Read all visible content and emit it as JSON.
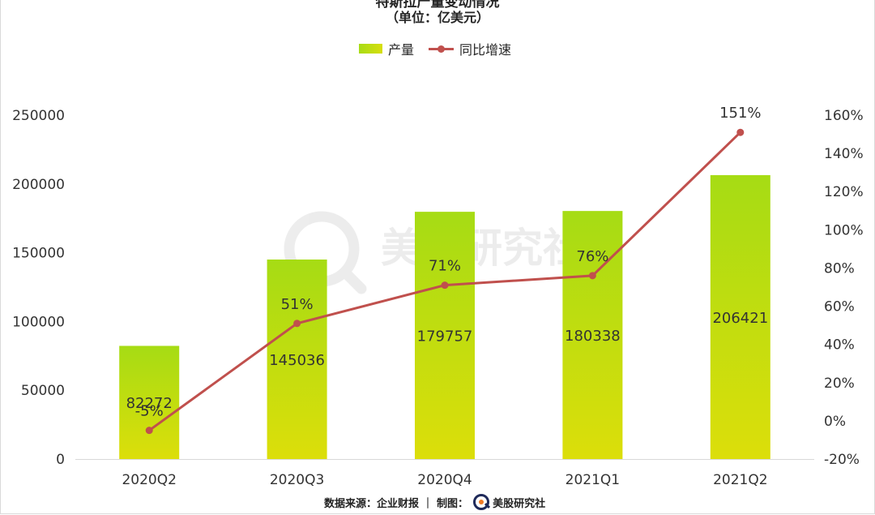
{
  "chart_data": {
    "type": "bar",
    "title": "特斯拉产量变动情况",
    "subtitle": "（单位：亿美元）",
    "categories": [
      "2020Q2",
      "2020Q3",
      "2020Q4",
      "2021Q1",
      "2021Q2"
    ],
    "series": [
      {
        "name": "产量",
        "type": "bar",
        "axis": "left",
        "values": [
          82272,
          145036,
          179757,
          180338,
          206421
        ],
        "labels": [
          "82272",
          "145036",
          "179757",
          "180338",
          "206421"
        ],
        "color_start": "#a6dc14",
        "color_end": "#dcde0a"
      },
      {
        "name": "同比增速",
        "type": "line",
        "axis": "right",
        "values": [
          -5,
          51,
          71,
          76,
          151
        ],
        "labels": [
          "-5%",
          "51%",
          "71%",
          "76%",
          "151%"
        ],
        "color": "#c0504d"
      }
    ],
    "y_left": {
      "range": [
        0,
        250000
      ],
      "ticks": [
        "0",
        "50000",
        "100000",
        "150000",
        "200000",
        "250000"
      ]
    },
    "y_right": {
      "range": [
        -20,
        160
      ],
      "ticks": [
        "-20%",
        "0%",
        "20%",
        "40%",
        "60%",
        "80%",
        "100%",
        "120%",
        "140%",
        "160%"
      ]
    },
    "grid": false,
    "legend_position": "top-center"
  },
  "legend": {
    "bar_label": "产量",
    "line_label": "同比增速"
  },
  "watermark": {
    "text": "美股研究社"
  },
  "footer": {
    "source": "数据来源：企业财报 ｜ 制图：",
    "brand": "美股研究社"
  }
}
